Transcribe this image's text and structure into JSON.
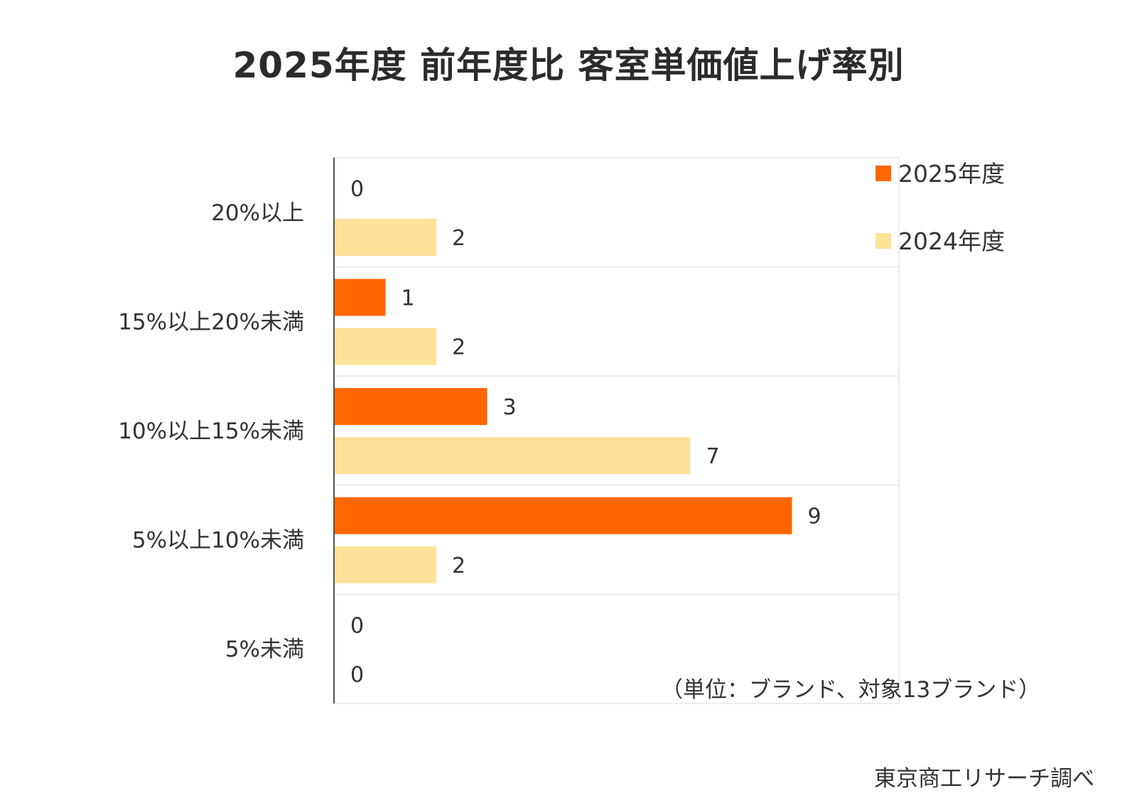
{
  "chart_data": {
    "type": "bar",
    "orientation": "horizontal",
    "title": "2025年度 前年度比 客室単価値上げ率別",
    "categories": [
      "20%以上",
      "15%以上20%未満",
      "10%以上15%未満",
      "5%以上10%未満",
      "5%未満"
    ],
    "series": [
      {
        "name": "2025年度",
        "color": "#ff6600",
        "values": [
          0,
          1,
          3,
          9,
          0
        ]
      },
      {
        "name": "2024年度",
        "color": "#ffe299",
        "values": [
          2,
          2,
          7,
          2,
          0
        ]
      }
    ],
    "xlim": [
      0,
      10
    ],
    "grid": true,
    "legend_position": "top-right",
    "unit_note": "（単位：ブランド、対象13ブランド）",
    "source": "東京商工リサーチ調べ"
  }
}
